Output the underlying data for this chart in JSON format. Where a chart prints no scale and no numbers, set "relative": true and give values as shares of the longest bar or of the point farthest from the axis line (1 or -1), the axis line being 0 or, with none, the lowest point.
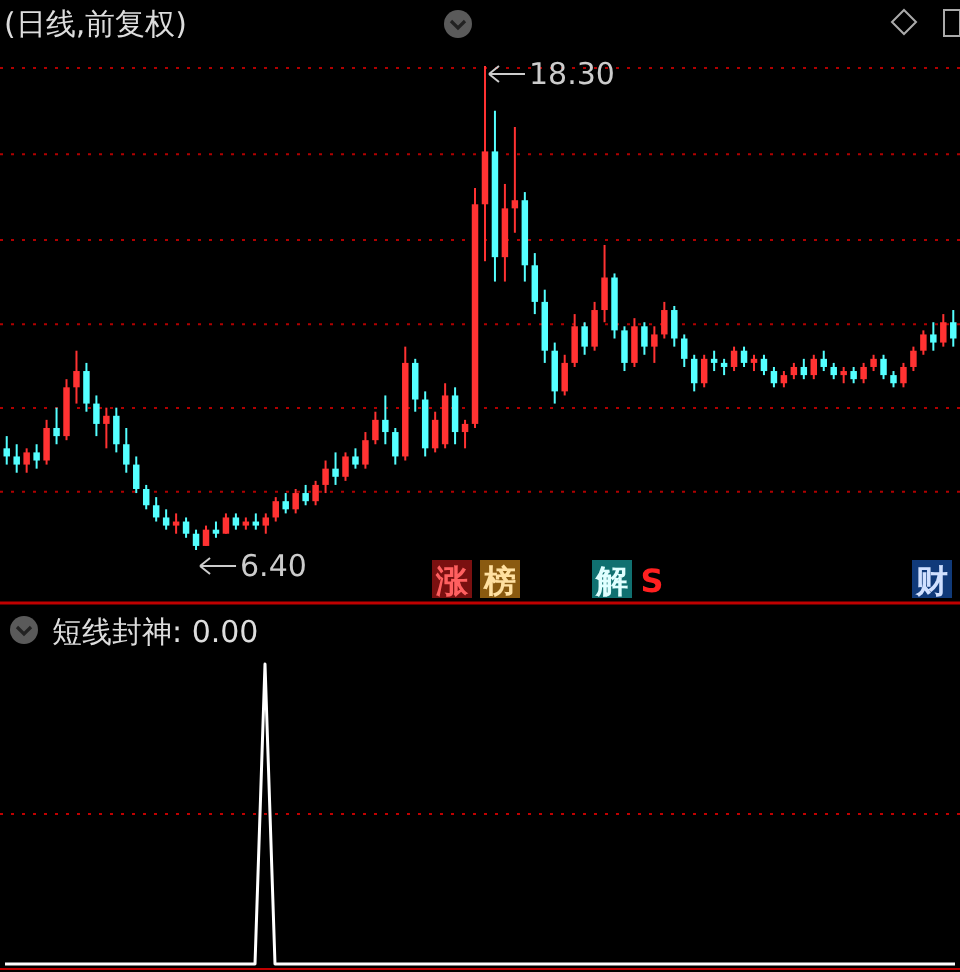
{
  "chart_data": [
    {
      "type": "candlestick",
      "title": "(日线,前复权)",
      "categories": [
        null,
        null,
        null,
        null,
        null,
        null,
        null,
        null,
        null,
        null,
        null,
        null,
        null,
        null,
        null,
        null,
        null,
        null,
        null,
        null,
        null,
        null,
        null,
        null,
        null,
        null,
        null,
        null,
        null,
        null,
        null,
        null,
        null,
        null,
        null,
        null,
        null,
        null,
        null,
        null,
        null,
        null,
        null,
        null,
        null,
        null,
        null,
        null,
        null,
        null,
        null,
        null,
        null,
        null,
        null,
        null,
        null,
        null,
        null,
        null,
        null,
        null,
        null,
        null,
        null,
        null,
        null,
        null,
        null,
        null,
        null,
        null,
        null,
        null,
        null,
        null,
        null,
        null,
        null,
        null,
        null,
        null,
        null,
        null,
        null,
        null,
        null,
        null,
        null,
        null,
        null,
        null,
        null,
        null,
        null,
        null
      ],
      "ohlc": [
        [
          8.9,
          9.2,
          8.5,
          8.7
        ],
        [
          8.7,
          9.0,
          8.3,
          8.5
        ],
        [
          8.5,
          8.9,
          8.3,
          8.8
        ],
        [
          8.8,
          9.0,
          8.4,
          8.6
        ],
        [
          8.6,
          9.6,
          8.5,
          9.4
        ],
        [
          9.4,
          9.9,
          9.0,
          9.2
        ],
        [
          9.2,
          10.6,
          9.1,
          10.4
        ],
        [
          10.4,
          11.3,
          10.0,
          10.8
        ],
        [
          10.8,
          11.0,
          9.8,
          10.0
        ],
        [
          10.0,
          10.2,
          9.2,
          9.5
        ],
        [
          9.5,
          9.9,
          8.9,
          9.7
        ],
        [
          9.7,
          9.9,
          8.8,
          9.0
        ],
        [
          9.0,
          9.4,
          8.3,
          8.5
        ],
        [
          8.5,
          8.7,
          7.8,
          7.9
        ],
        [
          7.9,
          8.0,
          7.4,
          7.5
        ],
        [
          7.5,
          7.7,
          7.1,
          7.2
        ],
        [
          7.2,
          7.4,
          6.9,
          7.0
        ],
        [
          7.0,
          7.3,
          6.8,
          7.1
        ],
        [
          7.1,
          7.2,
          6.7,
          6.8
        ],
        [
          6.8,
          6.9,
          6.4,
          6.5
        ],
        [
          6.5,
          7.0,
          6.5,
          6.9
        ],
        [
          6.9,
          7.1,
          6.7,
          6.8
        ],
        [
          6.8,
          7.3,
          6.8,
          7.2
        ],
        [
          7.2,
          7.3,
          6.9,
          7.0
        ],
        [
          7.0,
          7.2,
          6.9,
          7.1
        ],
        [
          7.1,
          7.3,
          6.9,
          7.0
        ],
        [
          7.0,
          7.3,
          6.8,
          7.2
        ],
        [
          7.2,
          7.7,
          7.1,
          7.6
        ],
        [
          7.6,
          7.8,
          7.3,
          7.4
        ],
        [
          7.4,
          7.9,
          7.3,
          7.8
        ],
        [
          7.8,
          8.0,
          7.5,
          7.6
        ],
        [
          7.6,
          8.1,
          7.5,
          8.0
        ],
        [
          8.0,
          8.6,
          7.8,
          8.4
        ],
        [
          8.4,
          8.8,
          8.0,
          8.2
        ],
        [
          8.2,
          8.8,
          8.1,
          8.7
        ],
        [
          8.7,
          8.9,
          8.4,
          8.5
        ],
        [
          8.5,
          9.3,
          8.4,
          9.1
        ],
        [
          9.1,
          9.8,
          9.0,
          9.6
        ],
        [
          9.6,
          10.2,
          9.0,
          9.3
        ],
        [
          9.3,
          9.4,
          8.5,
          8.7
        ],
        [
          8.7,
          11.4,
          8.6,
          11.0
        ],
        [
          11.0,
          11.1,
          9.8,
          10.1
        ],
        [
          10.1,
          10.3,
          8.7,
          8.9
        ],
        [
          8.9,
          9.8,
          8.8,
          9.6
        ],
        [
          9.0,
          10.5,
          8.9,
          10.2
        ],
        [
          10.2,
          10.4,
          9.0,
          9.3
        ],
        [
          9.3,
          9.6,
          8.9,
          9.5
        ],
        [
          9.5,
          15.3,
          9.4,
          14.9
        ],
        [
          14.9,
          18.3,
          13.5,
          16.2
        ],
        [
          16.2,
          17.2,
          13.0,
          13.6
        ],
        [
          13.6,
          15.4,
          13.0,
          14.8
        ],
        [
          14.8,
          16.8,
          14.2,
          15.0
        ],
        [
          15.0,
          15.2,
          13.0,
          13.4
        ],
        [
          13.4,
          13.7,
          12.2,
          12.5
        ],
        [
          12.5,
          12.8,
          11.0,
          11.3
        ],
        [
          11.3,
          11.5,
          10.0,
          10.3
        ],
        [
          10.3,
          11.2,
          10.2,
          11.0
        ],
        [
          11.0,
          12.2,
          10.9,
          11.9
        ],
        [
          11.9,
          12.0,
          11.2,
          11.4
        ],
        [
          11.4,
          12.5,
          11.3,
          12.3
        ],
        [
          12.3,
          13.9,
          12.0,
          13.1
        ],
        [
          13.1,
          13.2,
          11.6,
          11.8
        ],
        [
          11.8,
          11.9,
          10.8,
          11.0
        ],
        [
          11.0,
          12.1,
          10.9,
          11.9
        ],
        [
          11.9,
          12.0,
          11.2,
          11.4
        ],
        [
          11.4,
          11.9,
          11.0,
          11.7
        ],
        [
          11.7,
          12.5,
          11.6,
          12.3
        ],
        [
          12.3,
          12.4,
          11.4,
          11.6
        ],
        [
          11.6,
          11.7,
          10.9,
          11.1
        ],
        [
          11.1,
          11.2,
          10.3,
          10.5
        ],
        [
          10.5,
          11.2,
          10.4,
          11.1
        ],
        [
          11.1,
          11.3,
          10.8,
          11.0
        ],
        [
          11.0,
          11.1,
          10.7,
          10.9
        ],
        [
          10.9,
          11.4,
          10.8,
          11.3
        ],
        [
          11.3,
          11.4,
          10.9,
          11.0
        ],
        [
          11.0,
          11.2,
          10.8,
          11.1
        ],
        [
          11.1,
          11.2,
          10.7,
          10.8
        ],
        [
          10.8,
          10.9,
          10.4,
          10.5
        ],
        [
          10.5,
          10.8,
          10.4,
          10.7
        ],
        [
          10.7,
          11.0,
          10.6,
          10.9
        ],
        [
          10.9,
          11.1,
          10.6,
          10.7
        ],
        [
          10.7,
          11.2,
          10.6,
          11.1
        ],
        [
          11.1,
          11.3,
          10.8,
          10.9
        ],
        [
          10.9,
          11.0,
          10.6,
          10.7
        ],
        [
          10.7,
          10.9,
          10.5,
          10.8
        ],
        [
          10.8,
          10.9,
          10.5,
          10.6
        ],
        [
          10.6,
          11.0,
          10.5,
          10.9
        ],
        [
          10.9,
          11.2,
          10.8,
          11.1
        ],
        [
          11.1,
          11.2,
          10.6,
          10.7
        ],
        [
          10.7,
          10.8,
          10.4,
          10.5
        ],
        [
          10.5,
          11.0,
          10.4,
          10.9
        ],
        [
          10.9,
          11.4,
          10.8,
          11.3
        ],
        [
          11.3,
          11.8,
          11.2,
          11.7
        ],
        [
          11.7,
          12.0,
          11.3,
          11.5
        ],
        [
          11.5,
          12.2,
          11.4,
          12.0
        ],
        [
          12.0,
          12.3,
          11.4,
          11.6
        ]
      ],
      "yticks": [
        {
          "value": 7.83,
          "label": null
        },
        {
          "value": 9.89,
          "label": null
        },
        {
          "value": 11.95,
          "label": null
        },
        {
          "value": 14.02,
          "label": null
        },
        {
          "value": 16.13,
          "label": null
        },
        {
          "value": 18.25,
          "label": null
        }
      ],
      "grid": "y",
      "annotations": [
        "18.30",
        "6.40",
        "涨",
        "榜",
        "解",
        "S",
        "财"
      ]
    },
    {
      "type": "line",
      "title": "短线封神: 0.00",
      "relative": true,
      "categories": [
        null,
        null,
        null,
        null,
        null,
        null,
        null,
        null,
        null,
        null,
        null,
        null,
        null,
        null,
        null,
        null,
        null,
        null,
        null,
        null,
        null,
        null,
        null,
        null,
        null,
        null,
        null,
        null,
        null,
        null,
        null,
        null,
        null,
        null,
        null,
        null,
        null,
        null,
        null,
        null,
        null,
        null,
        null,
        null,
        null,
        null,
        null,
        null,
        null,
        null,
        null,
        null,
        null,
        null,
        null,
        null,
        null,
        null,
        null,
        null,
        null,
        null,
        null,
        null,
        null,
        null,
        null,
        null,
        null,
        null,
        null,
        null,
        null,
        null,
        null,
        null,
        null,
        null,
        null,
        null,
        null,
        null,
        null,
        null,
        null,
        null,
        null,
        null,
        null,
        null,
        null,
        null,
        null,
        null,
        null,
        null
      ],
      "series": [
        {
          "color": "#ffffff",
          "values": [
            0,
            0,
            0,
            0,
            0,
            0,
            0,
            0,
            0,
            0,
            0,
            0,
            0,
            0,
            0,
            0,
            0,
            0,
            0,
            0,
            0,
            0,
            0,
            0,
            0,
            0,
            1,
            0,
            0,
            0,
            0,
            0,
            0,
            0,
            0,
            0,
            0,
            0,
            0,
            0,
            0,
            0,
            0,
            0,
            0,
            0,
            0,
            0,
            0,
            0,
            0,
            0,
            0,
            0,
            0,
            0,
            0,
            0,
            0,
            0,
            0,
            0,
            0,
            0,
            0,
            0,
            0,
            0,
            0,
            0,
            0,
            0,
            0,
            0,
            0,
            0,
            0,
            0,
            0,
            0,
            0,
            0,
            0,
            0,
            0,
            0,
            0,
            0,
            0,
            0,
            0,
            0,
            0,
            0,
            0,
            0
          ]
        }
      ],
      "ref_lines": [
        {
          "axis": "y",
          "value": 0.5,
          "color": "#c00000",
          "line_style": "dotted"
        }
      ]
    }
  ]
}
